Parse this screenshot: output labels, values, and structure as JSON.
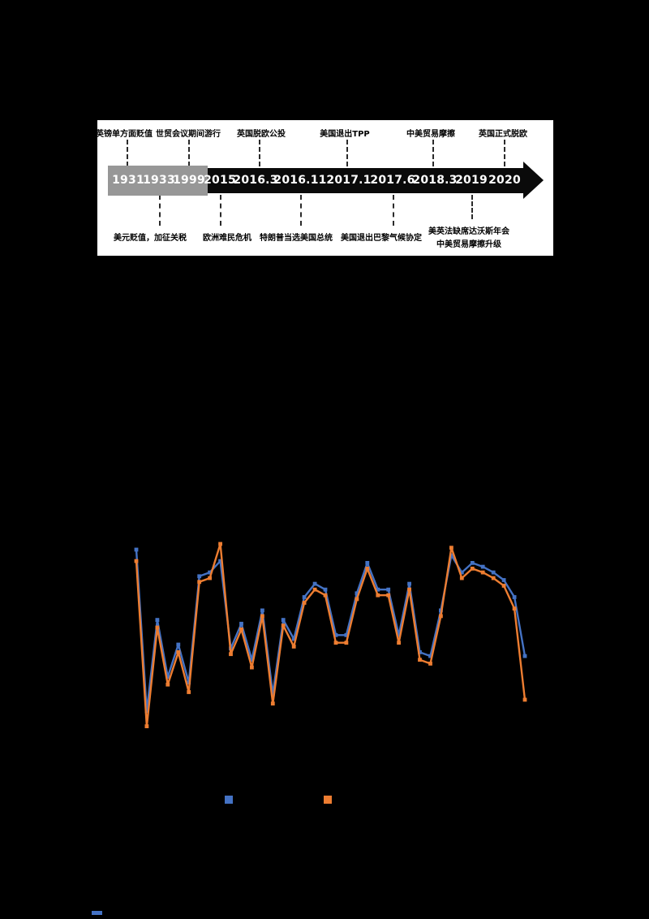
{
  "timeline": {
    "top_events": [
      {
        "label": "英镑单方面贬值"
      },
      {
        "label": "世贸会议期间游行"
      },
      {
        "label": "英国脱欧公投"
      },
      {
        "label": "美国退出TPP"
      },
      {
        "label": "中美贸易摩擦"
      },
      {
        "label": "英国正式脱欧"
      }
    ],
    "years": [
      "1931",
      "1933",
      "1999",
      "2015",
      "2016.3",
      "2016.11",
      "2017.1",
      "2017.6",
      "2018.3",
      "2019",
      "2020"
    ],
    "bottom_events": [
      {
        "label": "美元贬值，加征关税"
      },
      {
        "label": "欧洲难民危机"
      },
      {
        "label": "特朗普当选美国总统"
      },
      {
        "label": "美国退出巴黎气候协定"
      },
      {
        "label": "美英法缺席达沃斯年会"
      },
      {
        "label": "中美贸易摩擦升级"
      }
    ]
  },
  "chart_data": {
    "type": "line",
    "title": "",
    "xlabel": "",
    "ylabel": "",
    "axes_visible": false,
    "grid": false,
    "legend_position": "bottom",
    "background": "#000000",
    "ylim": [
      0,
      100
    ],
    "x_type": "index",
    "series": [
      {
        "name": "series-blue",
        "color": "#4472C4",
        "marker": "square",
        "values": [
          97,
          12,
          60,
          30,
          47,
          27,
          83,
          85,
          91,
          45,
          58,
          39,
          65,
          21,
          60,
          50,
          72,
          79,
          76,
          52,
          52,
          74,
          90,
          76,
          76,
          52,
          79,
          43,
          41,
          65,
          94,
          85,
          90,
          88,
          85,
          81,
          72,
          41
        ]
      },
      {
        "name": "series-orange",
        "color": "#ED7D31",
        "marker": "square",
        "values": [
          91,
          4,
          56,
          26,
          43,
          22,
          80,
          82,
          100,
          42,
          55,
          35,
          62,
          16,
          57,
          46,
          69,
          76,
          73,
          48,
          48,
          71,
          87,
          73,
          73,
          48,
          76,
          39,
          37,
          62,
          98,
          82,
          87,
          85,
          82,
          78,
          66,
          18
        ]
      }
    ]
  }
}
